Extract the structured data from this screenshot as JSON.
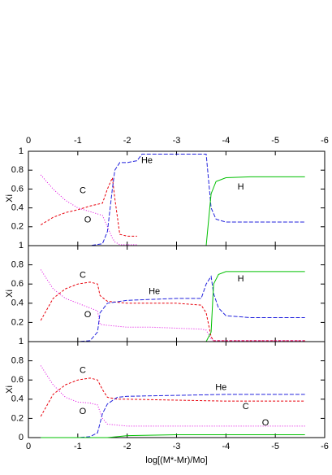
{
  "chart_data": [
    {
      "type": "line",
      "ylabel": "Xi",
      "xlim": [
        0,
        -6
      ],
      "xticks": [
        0,
        -1,
        -2,
        -3,
        -4,
        -5,
        -6
      ],
      "ylim": [
        0,
        1
      ],
      "yticks": [
        0.2,
        0.4,
        0.6,
        0.8,
        1
      ],
      "x": [
        -0.25,
        -0.5,
        -0.75,
        -1,
        -1.25,
        -1.5,
        -1.6,
        -1.7,
        -1.75,
        -1.85,
        -2,
        -2.2,
        -2.3,
        -2.6,
        -3,
        -3.5,
        -3.6,
        -3.7,
        -3.8,
        -4,
        -4.5,
        -5,
        -5.6
      ],
      "series": [
        {
          "name": "C",
          "color": "#e8000b",
          "values": [
            0.22,
            0.3,
            0.35,
            0.38,
            0.42,
            0.45,
            0.6,
            0.72,
            0.5,
            0.12,
            0.1,
            0.1,
            null,
            null,
            null,
            null,
            null,
            null,
            null,
            null,
            null,
            null,
            null
          ]
        },
        {
          "name": "O",
          "color": "#e000e0",
          "values": [
            0.75,
            0.6,
            0.48,
            0.4,
            0.36,
            0.32,
            0.2,
            0.08,
            0.04,
            0.01,
            0.01,
            0.01,
            null,
            null,
            null,
            null,
            null,
            null,
            null,
            null,
            null,
            null,
            null
          ]
        },
        {
          "name": "He",
          "color": "#2222dd",
          "values": [
            0,
            0,
            0,
            0,
            0,
            0.02,
            0.15,
            0.6,
            0.8,
            0.88,
            0.88,
            0.9,
            0.97,
            0.97,
            0.97,
            0.97,
            0.97,
            0.4,
            0.28,
            0.25,
            0.25,
            0.25,
            0.25
          ]
        },
        {
          "name": "H",
          "color": "#00c000",
          "values": [
            0,
            0,
            0,
            0,
            0,
            0,
            0,
            0,
            0,
            0,
            0,
            0,
            0,
            0,
            0,
            0,
            0,
            0.55,
            0.68,
            0.72,
            0.73,
            0.73,
            0.73
          ]
        }
      ]
    },
    {
      "type": "line",
      "ylabel": "Xi",
      "xlim": [
        0,
        -6
      ],
      "xticks": [
        0,
        -1,
        -2,
        -3,
        -4,
        -5,
        -6
      ],
      "ylim": [
        0,
        1
      ],
      "yticks": [
        0.2,
        0.4,
        0.6,
        0.8,
        1
      ],
      "x": [
        -0.25,
        -0.5,
        -0.75,
        -1,
        -1.25,
        -1.4,
        -1.45,
        -1.6,
        -2,
        -2.5,
        -3,
        -3.5,
        -3.6,
        -3.7,
        -3.75,
        -3.85,
        -4,
        -4.5,
        -5,
        -5.6
      ],
      "series": [
        {
          "name": "C",
          "color": "#e8000b",
          "values": [
            0.22,
            0.45,
            0.55,
            0.6,
            0.62,
            0.6,
            0.48,
            0.42,
            0.4,
            0.4,
            0.4,
            0.38,
            0.3,
            0.05,
            0.01,
            0.01,
            0.01,
            0.01,
            0.01,
            0.01
          ]
        },
        {
          "name": "O",
          "color": "#e000e0",
          "values": [
            0.75,
            0.55,
            0.45,
            0.4,
            0.35,
            0.32,
            0.18,
            0.17,
            0.15,
            0.15,
            0.14,
            0.13,
            0.12,
            0.03,
            0.01,
            0.01,
            0.01,
            0.01,
            0.01,
            0.01
          ]
        },
        {
          "name": "He",
          "color": "#2222dd",
          "values": [
            0,
            0,
            0,
            0,
            0.01,
            0.1,
            0.3,
            0.4,
            0.43,
            0.44,
            0.45,
            0.45,
            0.6,
            0.68,
            0.5,
            0.35,
            0.27,
            0.25,
            0.25,
            0.25
          ]
        },
        {
          "name": "H",
          "color": "#00c000",
          "values": [
            0,
            0,
            0,
            0,
            0,
            0,
            0,
            0,
            0,
            0,
            0,
            0,
            0,
            0.1,
            0.6,
            0.7,
            0.73,
            0.73,
            0.73,
            0.73
          ]
        }
      ]
    },
    {
      "type": "line",
      "ylabel": "Xi",
      "xlabel": "log[(M*-Mr)/Mo]",
      "xlim": [
        0,
        -6
      ],
      "xticks": [
        0,
        -1,
        -2,
        -3,
        -4,
        -5,
        -6
      ],
      "ylim": [
        0,
        1
      ],
      "yticks": [
        0,
        0.2,
        0.4,
        0.6,
        0.8,
        1
      ],
      "x": [
        -0.25,
        -0.5,
        -0.75,
        -1,
        -1.25,
        -1.4,
        -1.5,
        -1.6,
        -1.8,
        -2,
        -3,
        -4,
        -5,
        -5.6
      ],
      "series": [
        {
          "name": "C",
          "color": "#e8000b",
          "values": [
            0.22,
            0.45,
            0.55,
            0.6,
            0.62,
            0.6,
            0.5,
            0.42,
            0.4,
            0.4,
            0.39,
            0.38,
            0.38,
            0.38
          ]
        },
        {
          "name": "O",
          "color": "#e000e0",
          "values": [
            0.75,
            0.55,
            0.42,
            0.37,
            0.36,
            0.34,
            0.2,
            0.14,
            0.13,
            0.12,
            0.12,
            0.12,
            0.12,
            0.12
          ]
        },
        {
          "name": "He",
          "color": "#2222dd",
          "values": [
            0,
            0,
            0,
            0,
            0.01,
            0.05,
            0.25,
            0.35,
            0.42,
            0.43,
            0.44,
            0.45,
            0.45,
            0.45
          ]
        },
        {
          "name": "H",
          "color": "#00c000",
          "values": [
            0,
            0,
            0,
            0,
            0,
            0,
            0,
            0,
            0.01,
            0.02,
            0.03,
            0.03,
            0.03,
            0.03
          ]
        }
      ]
    }
  ]
}
